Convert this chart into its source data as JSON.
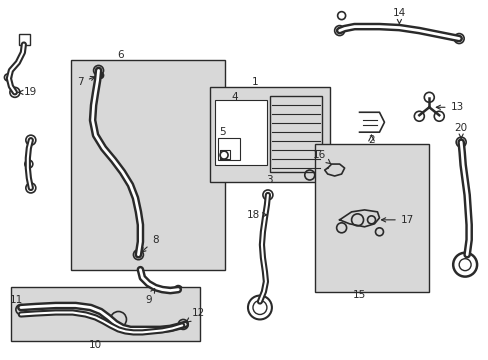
{
  "background_color": "#ffffff",
  "line_color": "#2a2a2a",
  "box_fill": "#d8d8d8",
  "fig_w": 4.89,
  "fig_h": 3.6,
  "dpi": 100
}
